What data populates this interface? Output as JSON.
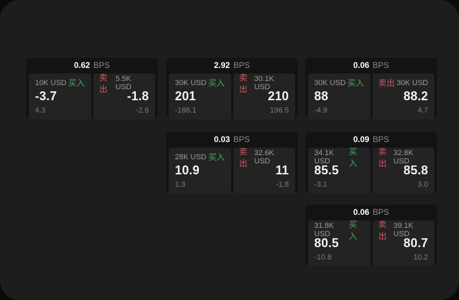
{
  "page": {
    "bg_outer": "#0a0a0a",
    "bg_panel": "#1d1d1d"
  },
  "colors": {
    "card_bg": "#131313",
    "subpanel_bg": "#232323",
    "buy_green": "#46a862",
    "sell_red": "#cc5a64",
    "value_text": "#f2f2f2",
    "muted_text": "#9c9c9c",
    "dim_text": "#7d7d7d"
  },
  "labels": {
    "bps": "BPS",
    "buy": "买入",
    "sell": "卖出"
  },
  "cards": [
    {
      "grid": {
        "row": 1,
        "col": 1
      },
      "bps": "0.62",
      "buy": {
        "amount": "10K USD",
        "value": "-3.7",
        "sub": "4.3"
      },
      "sell": {
        "amount": "5.5K USD",
        "value": "-1.8",
        "sub": "-2.6"
      }
    },
    {
      "grid": {
        "row": 1,
        "col": 2
      },
      "bps": "2.92",
      "buy": {
        "amount": "30K USD",
        "value": "201",
        "sub": "-188.1"
      },
      "sell": {
        "amount": "30.1K USD",
        "value": "210",
        "sub": "196.5"
      }
    },
    {
      "grid": {
        "row": 1,
        "col": 3
      },
      "bps": "0.06",
      "buy": {
        "amount": "30K USD",
        "value": "88",
        "sub": "-4.9"
      },
      "sell": {
        "amount": "30K USD",
        "value": "88.2",
        "sub": "4.7"
      }
    },
    {
      "grid": {
        "row": 2,
        "col": 2
      },
      "bps": "0.03",
      "buy": {
        "amount": "28K USD",
        "value": "10.9",
        "sub": "1.3"
      },
      "sell": {
        "amount": "32.6K USD",
        "value": "11",
        "sub": "-1.8"
      }
    },
    {
      "grid": {
        "row": 2,
        "col": 3
      },
      "bps": "0.09",
      "buy": {
        "amount": "34.1K USD",
        "value": "85.5",
        "sub": "-3.1"
      },
      "sell": {
        "amount": "32.8K USD",
        "value": "85.8",
        "sub": "3.0"
      }
    },
    {
      "grid": {
        "row": 3,
        "col": 3
      },
      "bps": "0.06",
      "buy": {
        "amount": "31.8K USD",
        "value": "80.5",
        "sub": "-10.8"
      },
      "sell": {
        "amount": "39.1K USD",
        "value": "80.7",
        "sub": "10.2"
      }
    }
  ]
}
